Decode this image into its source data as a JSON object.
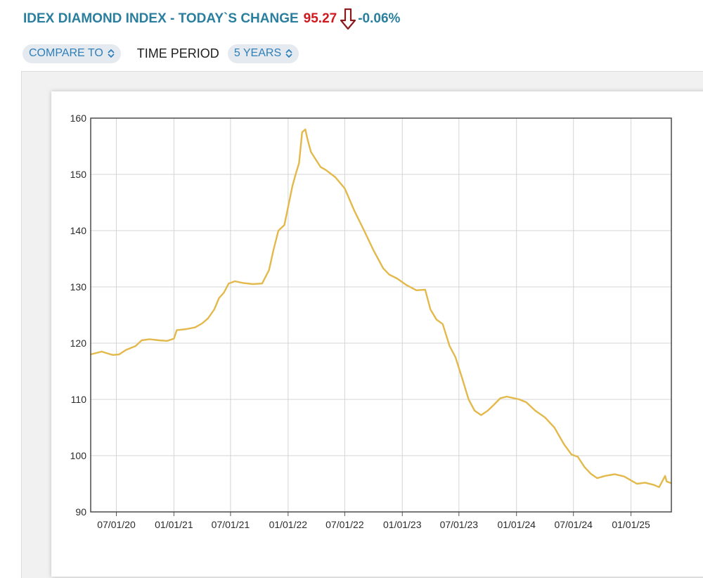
{
  "header": {
    "title": "IDEX DIAMOND INDEX - TODAY`S CHANGE",
    "value": "95.27",
    "change": "-0.06%",
    "arrow_icon": "down-arrow-icon",
    "title_color": "#2a7f9e",
    "value_color": "#d0191f",
    "arrow_color": "#8b1a1f"
  },
  "controls": {
    "compare_label": "COMPARE TO",
    "time_period_label": "TIME PERIOD",
    "period_value": "5 YEARS",
    "chevron_icon": "chevron-updown-icon",
    "pill_bg": "#e4eaf0",
    "pill_text_color": "#2f7fb8"
  },
  "chart_data": {
    "type": "line",
    "title": "",
    "xlabel": "",
    "ylabel": "",
    "ylim": [
      90,
      160
    ],
    "yticks": [
      "160",
      "150",
      "140",
      "130",
      "120",
      "110",
      "100",
      "90"
    ],
    "xticks": [
      "07/01/20",
      "01/01/21",
      "07/01/21",
      "01/01/22",
      "07/01/22",
      "01/01/23",
      "07/01/23",
      "01/01/24",
      "07/01/24",
      "01/01/25"
    ],
    "xlim": [
      "2020-04-10",
      "2025-05-10"
    ],
    "grid": true,
    "line_color": "#e3b94c",
    "series": [
      {
        "x": [
          "2020-04-10",
          "2020-05-01",
          "2020-05-15",
          "2020-06-01",
          "2020-06-20",
          "2020-07-10",
          "2020-08-01",
          "2020-09-01",
          "2020-09-20",
          "2020-10-15",
          "2020-11-15",
          "2020-12-10",
          "2021-01-01",
          "2021-01-10",
          "2021-02-10",
          "2021-03-10",
          "2021-04-01",
          "2021-04-20",
          "2021-05-10",
          "2021-05-25",
          "2021-06-10",
          "2021-06-25",
          "2021-07-15",
          "2021-08-10",
          "2021-09-10",
          "2021-10-10",
          "2021-11-01",
          "2021-11-15",
          "2021-12-01",
          "2021-12-20",
          "2022-01-15",
          "2022-01-25",
          "2022-02-05",
          "2022-02-15",
          "2022-02-25",
          "2022-03-05",
          "2022-03-15",
          "2022-04-01",
          "2022-04-15",
          "2022-05-01",
          "2022-06-01",
          "2022-07-01",
          "2022-08-01",
          "2022-09-01",
          "2022-10-01",
          "2022-11-01",
          "2022-11-20",
          "2022-12-15",
          "2023-01-15",
          "2023-02-15",
          "2023-03-15",
          "2023-04-01",
          "2023-04-20",
          "2023-05-10",
          "2023-06-01",
          "2023-06-20",
          "2023-07-10",
          "2023-08-01",
          "2023-08-20",
          "2023-09-10",
          "2023-10-01",
          "2023-10-20",
          "2023-11-10",
          "2023-12-01",
          "2023-12-25",
          "2024-01-10",
          "2024-02-01",
          "2024-03-01",
          "2024-04-01",
          "2024-05-01",
          "2024-06-01",
          "2024-06-25",
          "2024-07-15",
          "2024-08-05",
          "2024-08-25",
          "2024-09-15",
          "2024-10-10",
          "2024-11-10",
          "2024-12-10",
          "2025-01-01",
          "2025-01-20",
          "2025-02-15",
          "2025-03-15",
          "2025-04-01",
          "2025-04-20",
          "2025-04-25",
          "2025-05-10"
        ],
        "y": [
          118,
          118.3,
          118.5,
          118.2,
          117.9,
          118,
          118.8,
          119.5,
          120.5,
          120.7,
          120.5,
          120.4,
          120.8,
          122.3,
          122.5,
          122.8,
          123.5,
          124.4,
          126,
          128,
          129,
          130.6,
          131,
          130.7,
          130.5,
          130.6,
          133,
          136.5,
          140,
          141,
          148,
          150,
          152,
          157.5,
          158,
          156,
          154,
          152.5,
          151.3,
          150.8,
          149.5,
          147.5,
          143.5,
          140,
          136.5,
          133.3,
          132.2,
          131.5,
          130.3,
          129.4,
          129.5,
          126,
          124.2,
          123.4,
          119.5,
          117.5,
          114,
          110,
          108,
          107.2,
          108,
          109,
          110.2,
          110.5,
          110.2,
          110,
          109.5,
          108,
          106.8,
          105,
          102,
          100.2,
          99.8,
          98,
          96.8,
          96,
          96.4,
          96.7,
          96.3,
          95.6,
          95,
          95.2,
          94.8,
          94.4,
          96.4,
          95.4,
          95.1
        ]
      }
    ]
  }
}
